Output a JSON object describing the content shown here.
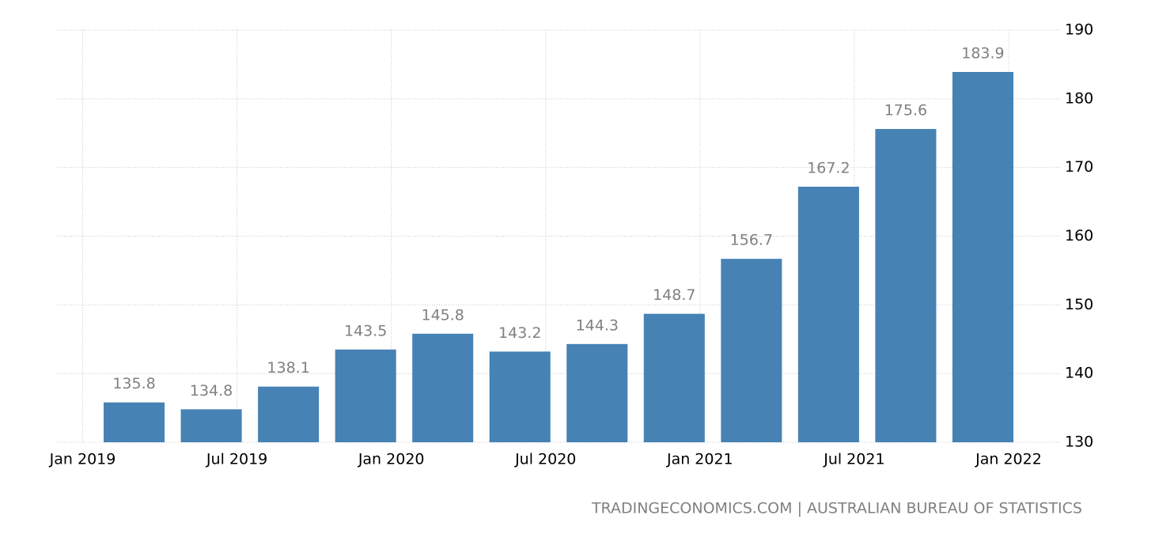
{
  "chart_data": {
    "type": "bar",
    "source": "TRADINGECONOMICS.COM | AUSTRALIAN BUREAU OF STATISTICS",
    "x": [
      "2019-03",
      "2019-06",
      "2019-09",
      "2019-12",
      "2020-03",
      "2020-06",
      "2020-09",
      "2020-12",
      "2021-03",
      "2021-06",
      "2021-09",
      "2021-12"
    ],
    "values": [
      135.8,
      134.8,
      138.1,
      143.5,
      145.8,
      143.2,
      144.3,
      148.7,
      156.7,
      167.2,
      175.6,
      183.9
    ],
    "color": "#4682b4",
    "xlim": [
      "2018-12",
      "2022-03"
    ],
    "xticks": [
      {
        "value": "2019-01",
        "label": "Jan 2019"
      },
      {
        "value": "2019-07",
        "label": "Jul 2019"
      },
      {
        "value": "2020-01",
        "label": "Jan 2020"
      },
      {
        "value": "2020-07",
        "label": "Jul 2020"
      },
      {
        "value": "2021-01",
        "label": "Jan 2021"
      },
      {
        "value": "2021-07",
        "label": "Jul 2021"
      },
      {
        "value": "2022-01",
        "label": "Jan 2022"
      }
    ],
    "ylim": [
      130,
      190
    ],
    "yticks": [
      130,
      140,
      150,
      160,
      170,
      180,
      190
    ],
    "grid": true
  }
}
